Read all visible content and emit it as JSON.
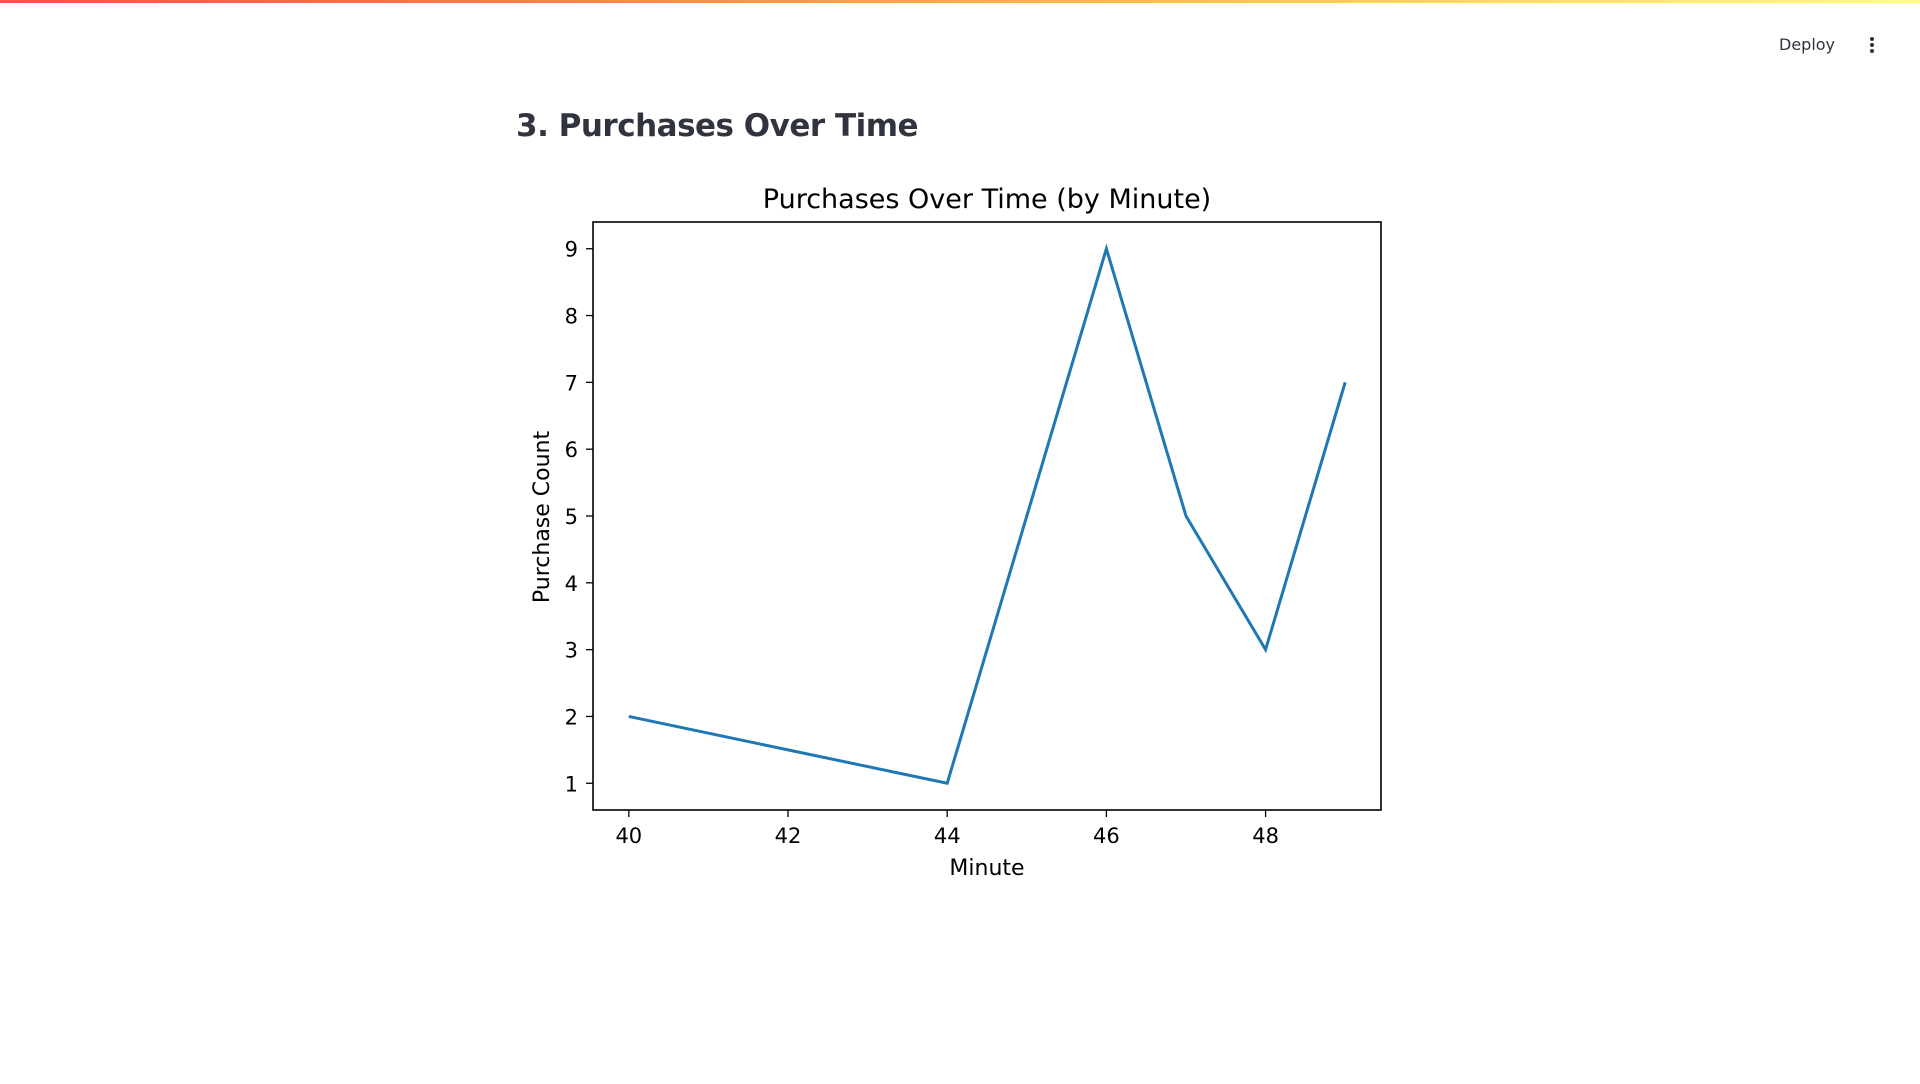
{
  "header": {
    "deploy_label": "Deploy",
    "menu_icon": "more-vertical-icon"
  },
  "page": {
    "title": "3. Purchases Over Time"
  },
  "colors": {
    "line": "#1f77b4",
    "text": "#31333f"
  },
  "chart_data": {
    "type": "line",
    "title": "Purchases Over Time (by Minute)",
    "xlabel": "Minute",
    "ylabel": "Purchase Count",
    "x": [
      40,
      44,
      46,
      47,
      48,
      49
    ],
    "series": [
      {
        "values": [
          2,
          1,
          9,
          5,
          3,
          7
        ]
      }
    ],
    "xticks": [
      40,
      42,
      44,
      46,
      48
    ],
    "yticks": [
      1,
      2,
      3,
      4,
      5,
      6,
      7,
      8,
      9
    ],
    "xlim": [
      39.55,
      49.45
    ],
    "ylim": [
      0.6,
      9.4
    ],
    "grid": false
  }
}
